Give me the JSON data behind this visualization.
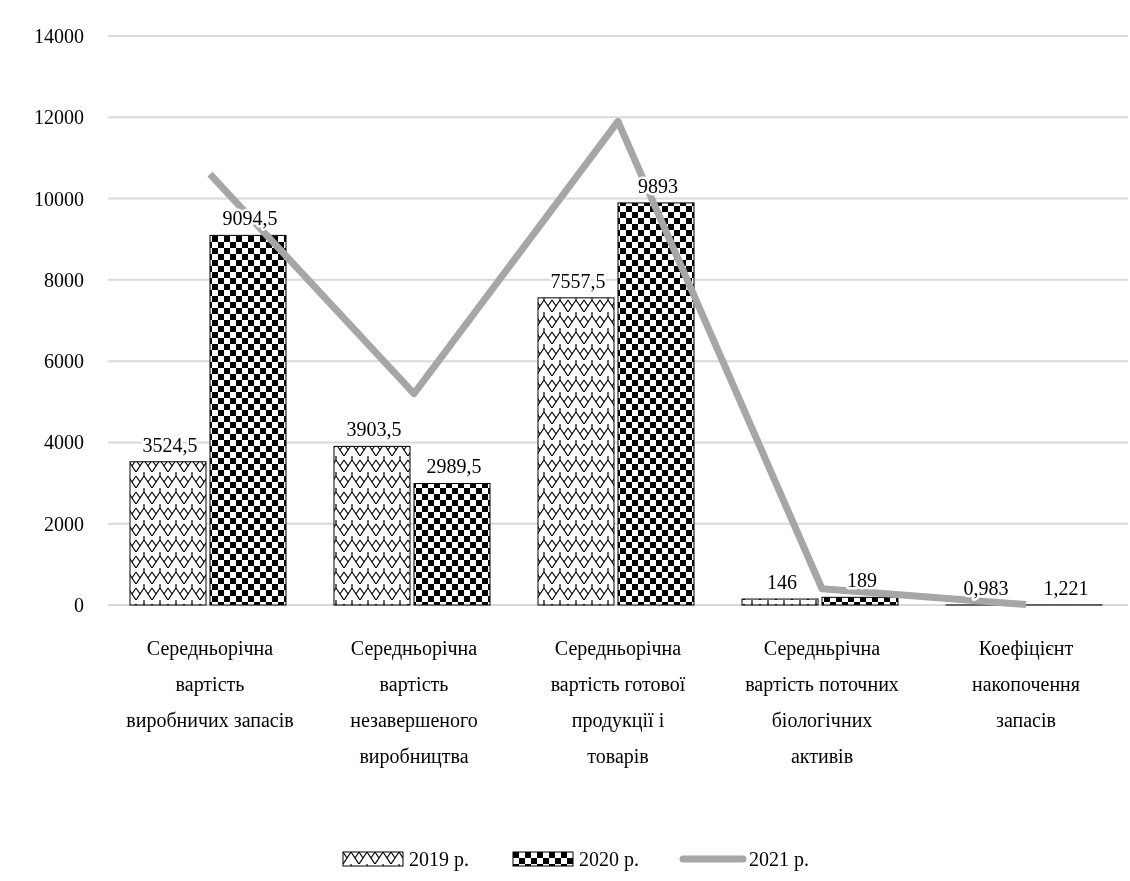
{
  "chart_data": {
    "type": "bar",
    "categories": [
      "Середньорічна вартість виробничих запасів",
      "Середньорічна вартість незавершеного виробництва",
      "Середньорічна вартість готової продукції і товарів",
      "Середньрічна вартість поточних біологічних активів",
      "Коефіцієнт накопочення запасів"
    ],
    "series": [
      {
        "name": "2019 р.",
        "color": "#000000",
        "values": [
          3524.5,
          3903.5,
          7557.5,
          146,
          0.983
        ],
        "value_labels": [
          "3524,5",
          "3903,5",
          "7557,5",
          "146",
          "0,983"
        ]
      },
      {
        "name": "2020 р.",
        "color": "#000000",
        "values": [
          9094.5,
          2989.5,
          9893,
          189,
          1.221
        ],
        "value_labels": [
          "9094,5",
          "2989,5",
          "9893",
          "189",
          "1,221"
        ]
      },
      {
        "name": "2021 р.",
        "type": "line",
        "color": "#a6a6a6",
        "values": [
          10600,
          5200,
          11900,
          400,
          10
        ]
      }
    ],
    "ylim": [
      0,
      14000
    ],
    "yticks": [
      0,
      2000,
      4000,
      6000,
      8000,
      10000,
      12000,
      14000
    ],
    "grid": "y",
    "legend": "bottom"
  }
}
